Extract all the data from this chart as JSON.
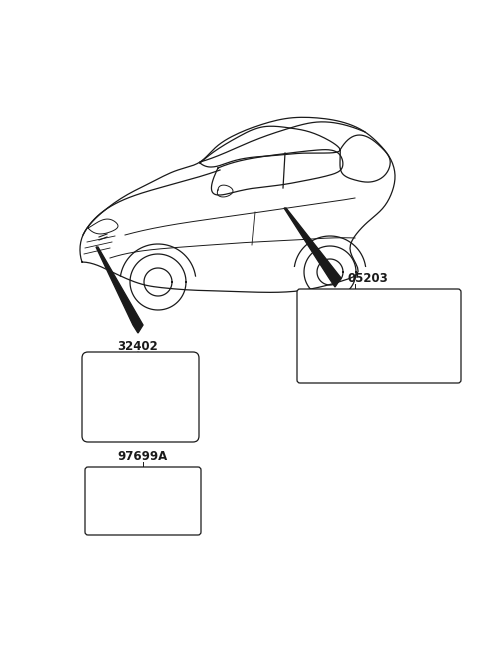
{
  "bg_color": "#ffffff",
  "line_color": "#1a1a1a",
  "fig_width": 4.8,
  "fig_height": 6.55,
  "dpi": 100,
  "label_32402": "32402",
  "label_97699A": "97699A",
  "label_05203": "05203"
}
